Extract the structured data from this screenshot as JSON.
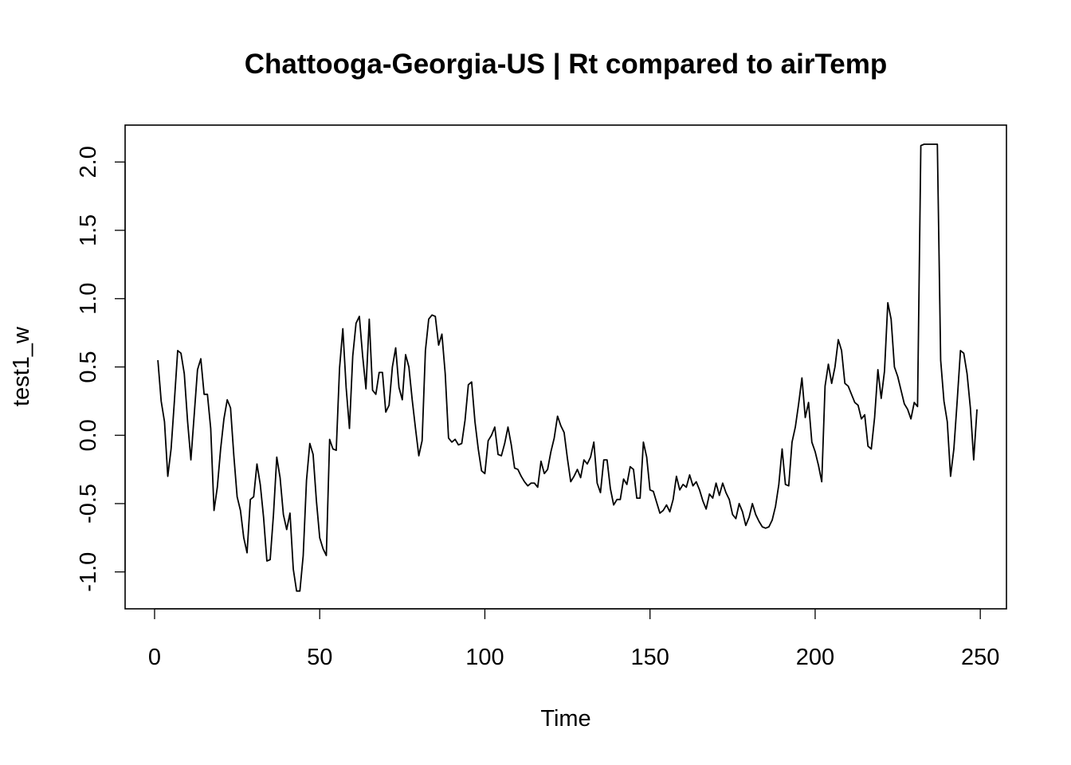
{
  "chart_data": {
    "type": "line",
    "title": "Chattooga-Georgia-US | Rt compared to airTemp",
    "xlabel": "Time",
    "ylabel": "test1_w",
    "xlim": [
      -8.92,
      257.92
    ],
    "ylim": [
      -1.27,
      2.27
    ],
    "xticks": [
      0,
      50,
      100,
      150,
      200,
      250
    ],
    "xtick_labels": [
      "0",
      "50",
      "100",
      "150",
      "200",
      "250"
    ],
    "yticks": [
      -1.0,
      -0.5,
      0.0,
      0.5,
      1.0,
      1.5,
      2.0
    ],
    "ytick_labels": [
      "-1.0",
      "-0.5",
      "0.0",
      "0.5",
      "1.0",
      "1.5",
      "2.0"
    ],
    "grid": false,
    "legend": "none",
    "colors": {
      "line": "#000000",
      "frame": "#000000",
      "background": "#ffffff"
    },
    "x_start": 1,
    "values": [
      0.55,
      0.25,
      0.1,
      -0.3,
      -0.1,
      0.25,
      0.62,
      0.6,
      0.45,
      0.1,
      -0.18,
      0.15,
      0.48,
      0.56,
      0.3,
      0.3,
      0.05,
      -0.55,
      -0.38,
      -0.1,
      0.12,
      0.26,
      0.2,
      -0.15,
      -0.45,
      -0.55,
      -0.75,
      -0.86,
      -0.47,
      -0.45,
      -0.21,
      -0.36,
      -0.6,
      -0.92,
      -0.91,
      -0.58,
      -0.16,
      -0.31,
      -0.58,
      -0.69,
      -0.57,
      -0.98,
      -1.14,
      -1.14,
      -0.88,
      -0.33,
      -0.06,
      -0.14,
      -0.48,
      -0.75,
      -0.83,
      -0.88,
      -0.03,
      -0.1,
      -0.11,
      0.49,
      0.78,
      0.35,
      0.05,
      0.58,
      0.82,
      0.87,
      0.58,
      0.34,
      0.85,
      0.33,
      0.3,
      0.46,
      0.46,
      0.17,
      0.22,
      0.5,
      0.64,
      0.35,
      0.26,
      0.59,
      0.5,
      0.26,
      0.05,
      -0.15,
      -0.04,
      0.62,
      0.85,
      0.88,
      0.87,
      0.66,
      0.74,
      0.45,
      -0.02,
      -0.05,
      -0.03,
      -0.07,
      -0.06,
      0.11,
      0.37,
      0.39,
      0.1,
      -0.1,
      -0.26,
      -0.28,
      -0.04,
      0.0,
      0.06,
      -0.14,
      -0.15,
      -0.06,
      0.06,
      -0.07,
      -0.24,
      -0.25,
      -0.3,
      -0.34,
      -0.37,
      -0.35,
      -0.35,
      -0.38,
      -0.19,
      -0.28,
      -0.25,
      -0.12,
      -0.02,
      0.14,
      0.07,
      0.02,
      -0.17,
      -0.34,
      -0.3,
      -0.25,
      -0.31,
      -0.18,
      -0.21,
      -0.16,
      -0.05,
      -0.35,
      -0.42,
      -0.18,
      -0.18,
      -0.39,
      -0.51,
      -0.47,
      -0.47,
      -0.32,
      -0.36,
      -0.23,
      -0.25,
      -0.46,
      -0.46,
      -0.05,
      -0.16,
      -0.4,
      -0.41,
      -0.49,
      -0.57,
      -0.55,
      -0.51,
      -0.56,
      -0.47,
      -0.3,
      -0.4,
      -0.36,
      -0.38,
      -0.29,
      -0.37,
      -0.34,
      -0.4,
      -0.48,
      -0.54,
      -0.43,
      -0.46,
      -0.35,
      -0.44,
      -0.35,
      -0.42,
      -0.47,
      -0.58,
      -0.61,
      -0.5,
      -0.56,
      -0.66,
      -0.6,
      -0.5,
      -0.58,
      -0.63,
      -0.67,
      -0.68,
      -0.67,
      -0.62,
      -0.52,
      -0.36,
      -0.1,
      -0.36,
      -0.37,
      -0.05,
      0.06,
      0.23,
      0.42,
      0.13,
      0.24,
      -0.05,
      -0.12,
      -0.22,
      -0.34,
      0.36,
      0.52,
      0.38,
      0.5,
      0.7,
      0.62,
      0.38,
      0.36,
      0.3,
      0.24,
      0.22,
      0.12,
      0.15,
      -0.08,
      -0.1,
      0.13,
      0.48,
      0.27,
      0.47,
      0.97,
      0.85,
      0.5,
      0.43,
      0.33,
      0.23,
      0.19,
      0.12,
      0.24,
      0.21,
      2.12,
      2.13,
      2.13,
      2.13,
      2.13,
      2.13,
      0.55,
      0.25,
      0.1,
      -0.3,
      -0.1,
      0.25,
      0.62,
      0.6,
      0.45,
      0.2,
      -0.18
    ],
    "last_value_extra": 0.19
  }
}
